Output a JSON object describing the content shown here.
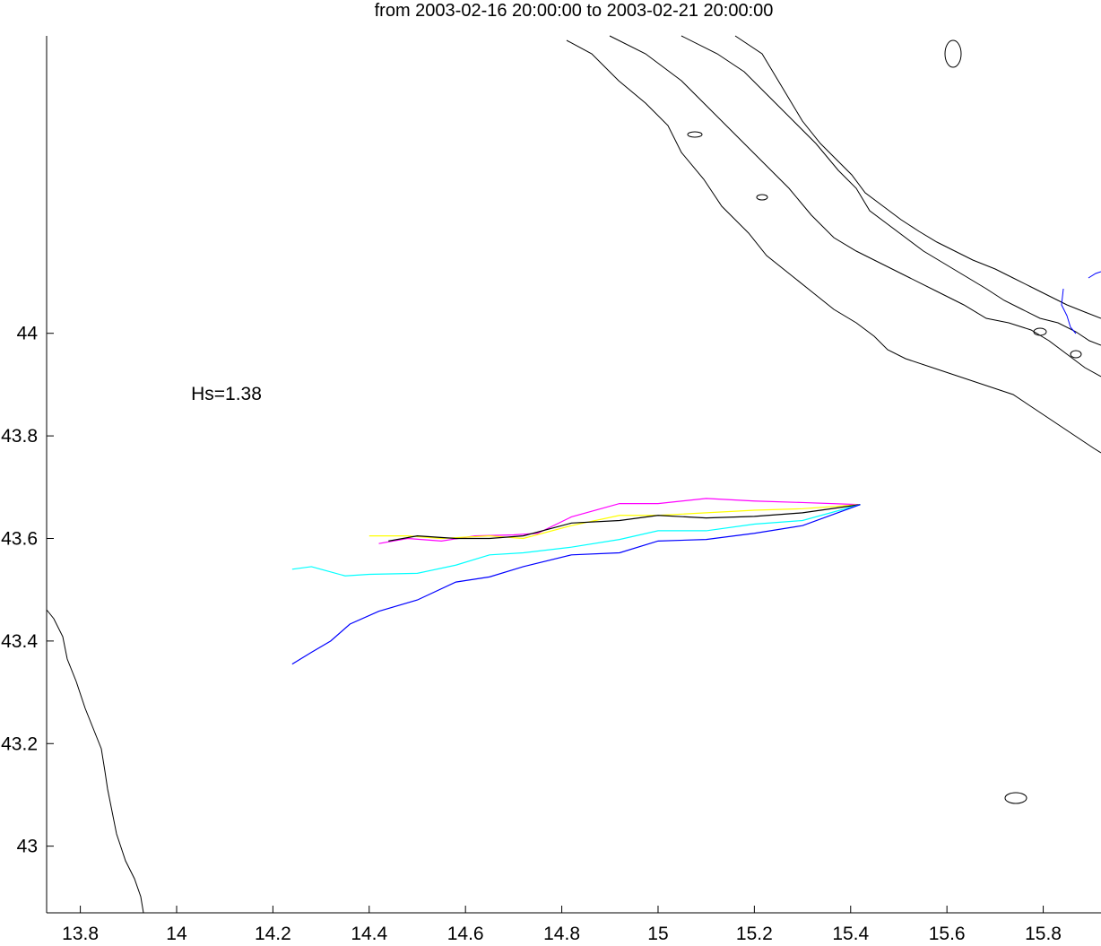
{
  "chart_data": {
    "type": "line",
    "title": "from 2003-02-16 20:00:00 to 2003-02-21 20:00:00",
    "xlabel": "",
    "ylabel": "",
    "xlim": [
      13.73,
      15.92
    ],
    "ylim": [
      42.87,
      44.58
    ],
    "xticks": [
      "13.8",
      "14",
      "14.2",
      "14.4",
      "14.6",
      "14.8",
      "15",
      "15.2",
      "15.4",
      "15.6",
      "15.8"
    ],
    "yticks": [
      "43",
      "43.2",
      "43.4",
      "43.6",
      "43.8",
      "44"
    ],
    "grid": false,
    "annotations": [
      {
        "text": "Hs=1.38",
        "x": 14.03,
        "y": 43.87
      }
    ],
    "colors": {
      "magenta": "#ff00ff",
      "yellow": "#ffff00",
      "black": "#000000",
      "cyan": "#00ffff",
      "blue": "#0000ff",
      "coast": "#000000"
    },
    "series": [
      {
        "color": "magenta",
        "x": [
          15.42,
          15.3,
          15.2,
          15.1,
          15.0,
          14.92,
          14.82,
          14.75,
          14.7,
          14.62,
          14.55,
          14.48,
          14.42
        ],
        "y": [
          43.666,
          43.67,
          43.673,
          43.678,
          43.668,
          43.668,
          43.642,
          43.61,
          43.607,
          43.605,
          43.595,
          43.6,
          43.59
        ]
      },
      {
        "color": "yellow",
        "x": [
          15.42,
          15.3,
          15.2,
          15.1,
          15.0,
          14.92,
          14.82,
          14.72,
          14.65,
          14.55,
          14.48,
          14.4
        ],
        "y": [
          43.666,
          43.658,
          43.655,
          43.65,
          43.645,
          43.645,
          43.625,
          43.6,
          43.605,
          43.6,
          43.605,
          43.605
        ]
      },
      {
        "color": "black",
        "x": [
          15.42,
          15.3,
          15.2,
          15.1,
          15.0,
          14.92,
          14.82,
          14.72,
          14.65,
          14.58,
          14.5,
          14.44
        ],
        "y": [
          43.666,
          43.65,
          43.643,
          43.64,
          43.645,
          43.635,
          43.63,
          43.605,
          43.6,
          43.6,
          43.605,
          43.595
        ]
      },
      {
        "color": "cyan",
        "x": [
          15.42,
          15.3,
          15.2,
          15.1,
          15.0,
          14.92,
          14.82,
          14.72,
          14.65,
          14.58,
          14.5,
          14.4,
          14.35,
          14.28,
          14.24
        ],
        "y": [
          43.666,
          43.635,
          43.628,
          43.615,
          43.615,
          43.598,
          43.583,
          43.572,
          43.568,
          43.548,
          43.532,
          43.53,
          43.527,
          43.545,
          43.54
        ]
      },
      {
        "color": "blue",
        "x": [
          15.42,
          15.3,
          15.2,
          15.1,
          15.0,
          14.92,
          14.82,
          14.72,
          14.65,
          14.58,
          14.5,
          14.42,
          14.36,
          14.32,
          14.28,
          14.24
        ],
        "y": [
          43.666,
          43.625,
          43.61,
          43.598,
          43.595,
          43.572,
          43.568,
          43.545,
          43.525,
          43.515,
          43.48,
          43.458,
          43.433,
          43.4,
          43.378,
          43.355
        ]
      }
    ]
  }
}
